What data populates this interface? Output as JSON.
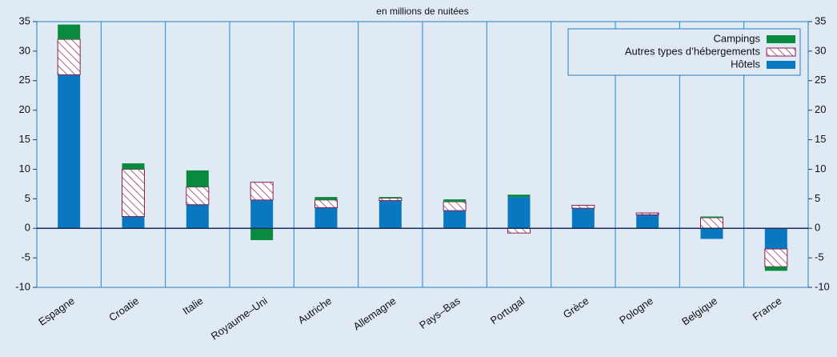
{
  "chart_data": {
    "type": "bar",
    "stacked": true,
    "subtitle": "en millions de nuitées",
    "categories": [
      "Espagne",
      "Croatie",
      "Italie",
      "Royaume–Uni",
      "Autriche",
      "Allemagne",
      "Pays–Bas",
      "Portugal",
      "Grèce",
      "Pologne",
      "Belgique",
      "France"
    ],
    "series": [
      {
        "name": "Hôtels",
        "color": "#0a78c0",
        "values": [
          26,
          2,
          4,
          4.8,
          3.5,
          4.7,
          3,
          5.3,
          3.4,
          2.3,
          -1.8,
          -3.5
        ]
      },
      {
        "name": "Autres types d’hébergements",
        "color": "#8c1d4e",
        "hatch": true,
        "values": [
          6,
          8,
          3,
          3,
          1.3,
          0.4,
          1.5,
          -0.8,
          0.5,
          0.3,
          1.8,
          -3
        ]
      },
      {
        "name": "Campings",
        "color": "#0a8a3e",
        "values": [
          2.5,
          1,
          2.8,
          -2,
          0.5,
          0.2,
          0.4,
          0.4,
          0,
          0,
          0.2,
          -0.7
        ]
      }
    ],
    "ylim": [
      -10,
      35
    ],
    "yticks": [
      -10,
      -5,
      0,
      5,
      10,
      15,
      20,
      25,
      30,
      35
    ],
    "grid": true,
    "legend": "top-right"
  }
}
